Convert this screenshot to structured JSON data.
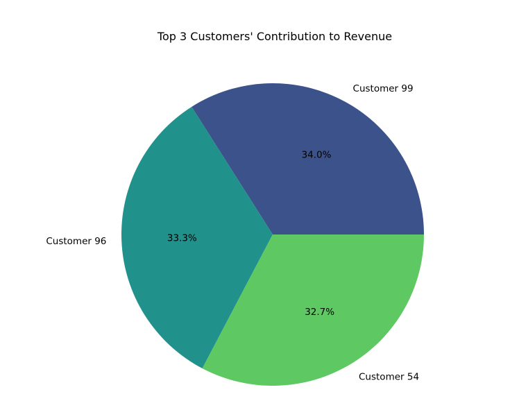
{
  "chart_data": {
    "type": "pie",
    "title": "Top 3 Customers' Contribution to Revenue",
    "start_angle_deg": 0,
    "direction": "counterclockwise",
    "slices": [
      {
        "label": "Customer 99",
        "value": 34.0,
        "pct_label": "34.0%",
        "color": "#3b528b"
      },
      {
        "label": "Customer 96",
        "value": 33.3,
        "pct_label": "33.3%",
        "color": "#21918c"
      },
      {
        "label": "Customer 54",
        "value": 32.7,
        "pct_label": "32.7%",
        "color": "#5ec962"
      }
    ]
  }
}
